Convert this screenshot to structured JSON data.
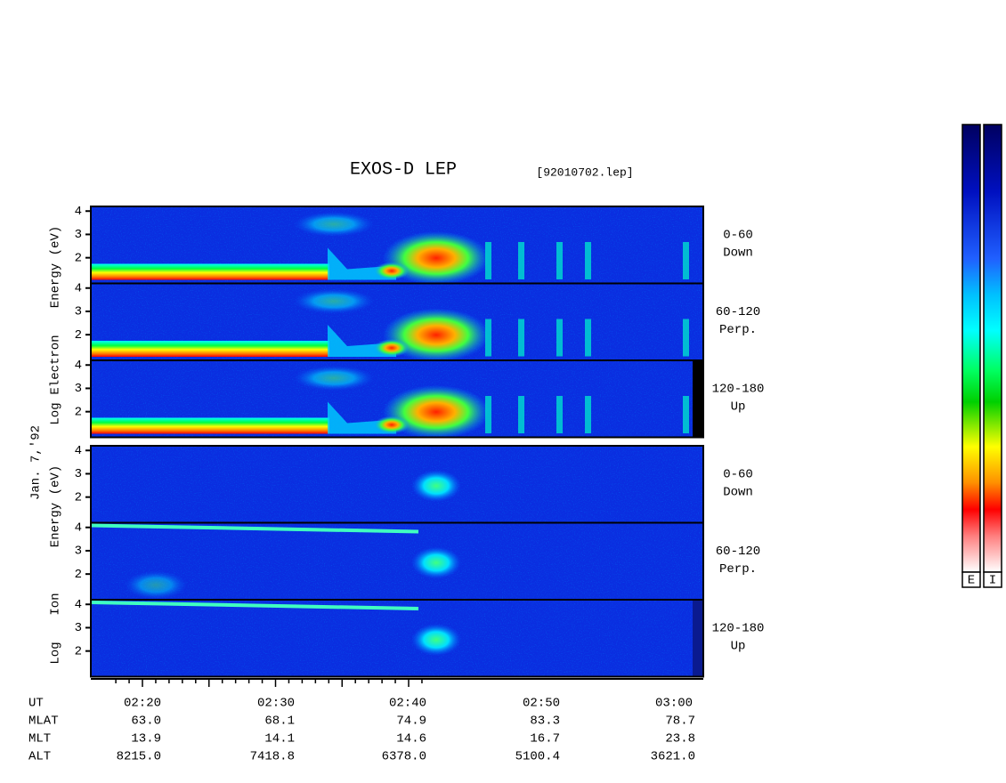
{
  "title": "EXOS-D LEP",
  "filename": "[92010702.lep]",
  "date": "Jan. 7,'92",
  "yticks": [
    2,
    3,
    4
  ],
  "ylim": [
    0.9,
    4.2
  ],
  "electron": {
    "ylabel": [
      "Log",
      "Electron",
      "Energy (eV)"
    ],
    "panels": [
      {
        "angle": "0-60",
        "direction": "Down"
      },
      {
        "angle": "60-120",
        "direction": "Perp."
      },
      {
        "angle": "120-180",
        "direction": "Up"
      }
    ]
  },
  "ion": {
    "ylabel": [
      "Log",
      "Ion",
      "Energy (eV)"
    ],
    "panels": [
      {
        "angle": "0-60",
        "direction": "Down"
      },
      {
        "angle": "60-120",
        "direction": "Perp."
      },
      {
        "angle": "120-180",
        "direction": "Up"
      }
    ]
  },
  "time_ticks": [
    "02:20",
    "02:30",
    "02:40",
    "02:50",
    "03:00"
  ],
  "ephemeris": [
    {
      "label": "UT",
      "values": []
    },
    {
      "label": "MLAT",
      "values": [
        "63.0",
        "68.1",
        "74.9",
        "83.3",
        "78.7"
      ]
    },
    {
      "label": "MLT",
      "values": [
        "13.9",
        "14.1",
        "14.6",
        "16.7",
        "23.8"
      ]
    },
    {
      "label": "ALT",
      "values": [
        "8215.0",
        "7418.8",
        "6378.0",
        "5100.4",
        "3621.0"
      ]
    }
  ],
  "colorbars": [
    "E",
    "I"
  ]
}
